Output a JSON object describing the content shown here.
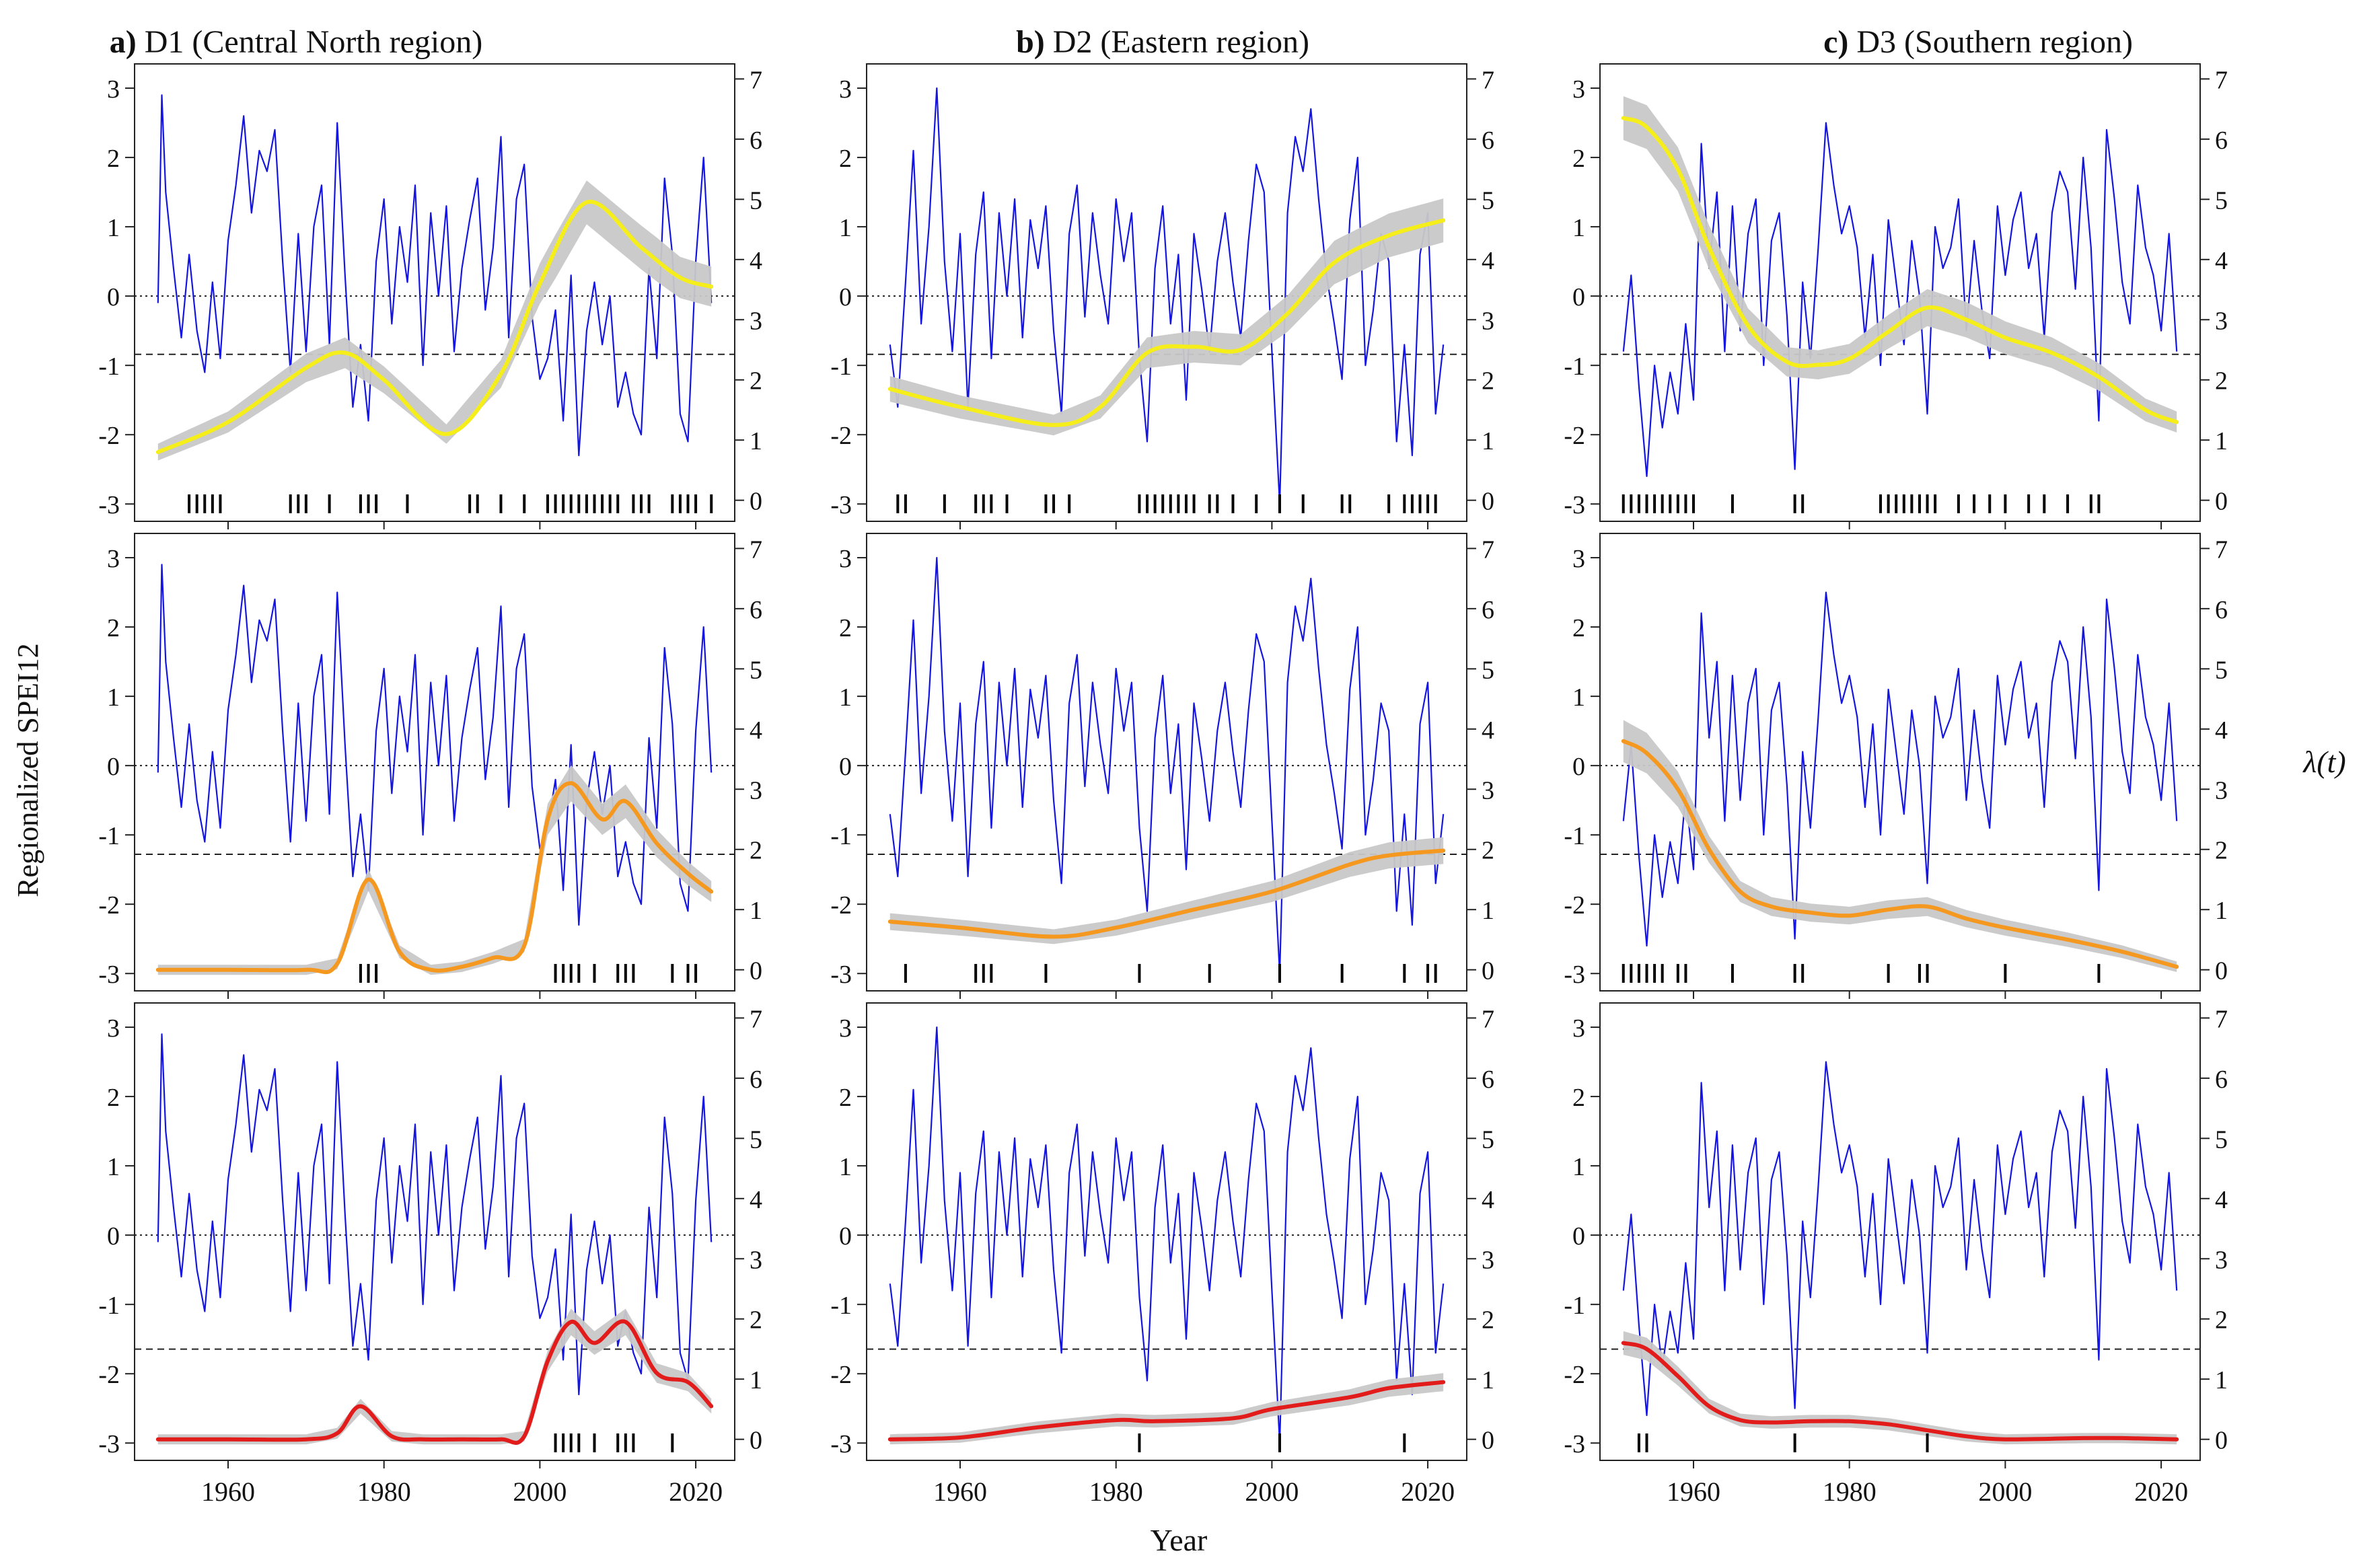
{
  "figure": {
    "panel_titles": [
      {
        "letter": "a)",
        "text": "D1 (Central North region)"
      },
      {
        "letter": "b)",
        "text": "D2 (Eastern region)"
      },
      {
        "letter": "c)",
        "text": "D3 (Southern region)"
      }
    ],
    "ylabel_left": "Regionalized SPEI12",
    "ylabel_right": "λ(t)",
    "xlabel": "Year"
  },
  "colors": {
    "spei_line": "#1515e0",
    "band": "#c8c8c8",
    "row_curves": [
      "#f5ee1a",
      "#f5981f",
      "#e21b1b"
    ]
  },
  "chart_data": {
    "type": "line",
    "layout": "3x3 grid (rows share thresholds, columns are regions)",
    "x_range": [
      1948,
      2025
    ],
    "x_ticks": [
      1960,
      1980,
      2000,
      2020
    ],
    "y_left_range": [
      -3.25,
      3.35
    ],
    "y_left_ticks": [
      -3,
      -2,
      -1,
      0,
      1,
      2,
      3
    ],
    "y_right_range": [
      -0.35,
      7.25
    ],
    "y_right_ticks": [
      0,
      1,
      2,
      3,
      4,
      5,
      6,
      7
    ],
    "zero_line": "dotted at SPEI 0",
    "rows": [
      {
        "threshold": -0.84,
        "curve_color": "#f5ee1a"
      },
      {
        "threshold": -1.28,
        "curve_color": "#f5981f"
      },
      {
        "threshold": -1.645,
        "curve_color": "#e21b1b"
      }
    ],
    "regions": [
      {
        "name": "D1 (Central North region)",
        "spei_series": {
          "x": [
            1951,
            1951.5,
            1952,
            1953,
            1954,
            1955,
            1956,
            1957,
            1958,
            1959,
            1960,
            1961,
            1962,
            1963,
            1964,
            1965,
            1966,
            1967,
            1968,
            1969,
            1970,
            1971,
            1972,
            1973,
            1974,
            1975,
            1976,
            1977,
            1978,
            1979,
            1980,
            1981,
            1982,
            1983,
            1984,
            1985,
            1986,
            1987,
            1988,
            1989,
            1990,
            1991,
            1992,
            1993,
            1994,
            1995,
            1996,
            1997,
            1998,
            1999,
            2000,
            2001,
            2002,
            2003,
            2004,
            2005,
            2006,
            2007,
            2008,
            2009,
            2010,
            2011,
            2012,
            2013,
            2014,
            2015,
            2016,
            2017,
            2018,
            2019,
            2020,
            2021,
            2022
          ],
          "y": [
            -0.1,
            2.9,
            1.5,
            0.4,
            -0.6,
            0.6,
            -0.5,
            -1.1,
            0.2,
            -0.9,
            0.8,
            1.6,
            2.6,
            1.2,
            2.1,
            1.8,
            2.4,
            0.5,
            -1.1,
            0.9,
            -0.8,
            1.0,
            1.6,
            -0.7,
            2.5,
            0.3,
            -1.6,
            -0.7,
            -1.8,
            0.5,
            1.4,
            -0.4,
            1.0,
            0.2,
            1.6,
            -1.0,
            1.2,
            0.0,
            1.3,
            -0.8,
            0.4,
            1.1,
            1.7,
            -0.2,
            0.7,
            2.3,
            -0.6,
            1.4,
            1.9,
            -0.3,
            -1.2,
            -0.9,
            -0.2,
            -1.8,
            0.3,
            -2.3,
            -0.5,
            0.2,
            -0.7,
            0.0,
            -1.6,
            -1.1,
            -1.7,
            -2.0,
            0.4,
            -0.9,
            1.7,
            0.6,
            -1.7,
            -2.1,
            0.5,
            2.0,
            -0.1
          ]
        },
        "lambda_curves": [
          {
            "x": [
              1951,
              1960,
              1970,
              1975,
              1980,
              1988,
              1995,
              2000,
              2006,
              2013,
              2018,
              2022
            ],
            "y": [
              0.8,
              1.3,
              2.2,
              2.45,
              2.0,
              1.1,
              2.1,
              3.6,
              4.95,
              4.2,
              3.7,
              3.55
            ]
          },
          {
            "x": [
              1951,
              1960,
              1970,
              1974,
              1978,
              1982,
              1986,
              1990,
              1994,
              1998,
              2001,
              2004,
              2008,
              2011,
              2015,
              2019,
              2022
            ],
            "y": [
              0.0,
              0.0,
              0.0,
              0.1,
              1.5,
              0.3,
              0.0,
              0.05,
              0.2,
              0.4,
              2.5,
              3.1,
              2.5,
              2.8,
              2.1,
              1.6,
              1.3
            ]
          },
          {
            "x": [
              1951,
              1960,
              1970,
              1974,
              1977,
              1981,
              1985,
              1990,
              1995,
              1998,
              2001,
              2004,
              2007,
              2011,
              2015,
              2019,
              2022
            ],
            "y": [
              0.0,
              0.0,
              0.0,
              0.1,
              0.55,
              0.05,
              0.0,
              0.0,
              0.0,
              0.05,
              1.3,
              1.95,
              1.6,
              1.95,
              1.1,
              0.95,
              0.55
            ]
          }
        ],
        "event_years": [
          [
            1955,
            1956,
            1957,
            1958,
            1959,
            1968,
            1969,
            1970,
            1973,
            1977,
            1978,
            1979,
            1983,
            1991,
            1992,
            1995,
            1998,
            2001,
            2002,
            2003,
            2004,
            2005,
            2006,
            2007,
            2008,
            2009,
            2010,
            2012,
            2013,
            2014,
            2017,
            2018,
            2019,
            2020,
            2022
          ],
          [
            1977,
            1978,
            1979,
            2002,
            2003,
            2004,
            2005,
            2007,
            2010,
            2011,
            2012,
            2017,
            2019,
            2020
          ],
          [
            2002,
            2003,
            2004,
            2005,
            2007,
            2010,
            2011,
            2012,
            2017
          ]
        ]
      },
      {
        "name": "D2 (Eastern region)",
        "spei_series": {
          "x": [
            1951,
            1952,
            1953,
            1954,
            1955,
            1956,
            1957,
            1958,
            1959,
            1960,
            1961,
            1962,
            1963,
            1964,
            1965,
            1966,
            1967,
            1968,
            1969,
            1970,
            1971,
            1972,
            1973,
            1974,
            1975,
            1976,
            1977,
            1978,
            1979,
            1980,
            1981,
            1982,
            1983,
            1984,
            1985,
            1986,
            1987,
            1988,
            1989,
            1990,
            1991,
            1992,
            1993,
            1994,
            1995,
            1996,
            1997,
            1998,
            1999,
            2000,
            2001,
            2002,
            2003,
            2004,
            2005,
            2006,
            2007,
            2008,
            2009,
            2010,
            2011,
            2012,
            2013,
            2014,
            2015,
            2016,
            2017,
            2018,
            2019,
            2020,
            2021,
            2022
          ],
          "y": [
            -0.7,
            -1.6,
            0.2,
            2.1,
            -0.4,
            1.0,
            3.0,
            0.5,
            -0.8,
            0.9,
            -1.6,
            0.6,
            1.5,
            -0.9,
            1.2,
            0.0,
            1.4,
            -0.6,
            1.1,
            0.4,
            1.3,
            -0.5,
            -1.7,
            0.9,
            1.6,
            -0.3,
            1.2,
            0.3,
            -0.4,
            1.4,
            0.5,
            1.2,
            -0.9,
            -2.1,
            0.4,
            1.3,
            -0.4,
            0.6,
            -1.5,
            0.9,
            0.1,
            -0.8,
            0.5,
            1.2,
            0.2,
            -0.6,
            0.8,
            1.9,
            1.5,
            -0.8,
            -3.0,
            1.2,
            2.3,
            1.8,
            2.7,
            1.4,
            0.3,
            -0.4,
            -1.2,
            1.1,
            2.0,
            -1.0,
            -0.2,
            0.9,
            0.5,
            -2.1,
            -0.7,
            -2.3,
            0.6,
            1.2,
            -1.7,
            -0.7
          ]
        },
        "lambda_curves": [
          {
            "x": [
              1951,
              1960,
              1972,
              1978,
              1984,
              1990,
              1996,
              2002,
              2008,
              2015,
              2022
            ],
            "y": [
              1.85,
              1.55,
              1.25,
              1.55,
              2.45,
              2.55,
              2.5,
              3.1,
              3.95,
              4.4,
              4.65
            ]
          },
          {
            "x": [
              1951,
              1960,
              1972,
              1980,
              1990,
              2000,
              2010,
              2015,
              2022
            ],
            "y": [
              0.8,
              0.7,
              0.55,
              0.7,
              1.0,
              1.3,
              1.75,
              1.9,
              1.98
            ]
          },
          {
            "x": [
              1951,
              1960,
              1970,
              1980,
              1985,
              1995,
              2000,
              2010,
              2015,
              2022
            ],
            "y": [
              0.0,
              0.03,
              0.2,
              0.32,
              0.3,
              0.35,
              0.5,
              0.7,
              0.85,
              0.95
            ]
          }
        ],
        "event_years": [
          [
            1952,
            1953,
            1958,
            1962,
            1963,
            1964,
            1966,
            1971,
            1972,
            1974,
            1983,
            1984,
            1985,
            1986,
            1987,
            1988,
            1989,
            1990,
            1992,
            1993,
            1995,
            1998,
            2001,
            2004,
            2009,
            2010,
            2015,
            2017,
            2018,
            2019,
            2020,
            2021
          ],
          [
            1953,
            1962,
            1963,
            1964,
            1971,
            1983,
            1992,
            2001,
            2009,
            2017,
            2020,
            2021
          ],
          [
            1983,
            2001,
            2017
          ]
        ]
      },
      {
        "name": "D3 (Southern region)",
        "spei_series": {
          "x": [
            1951,
            1952,
            1953,
            1954,
            1955,
            1956,
            1957,
            1958,
            1959,
            1960,
            1961,
            1962,
            1963,
            1964,
            1965,
            1966,
            1967,
            1968,
            1969,
            1970,
            1971,
            1972,
            1973,
            1974,
            1975,
            1976,
            1977,
            1978,
            1979,
            1980,
            1981,
            1982,
            1983,
            1984,
            1985,
            1986,
            1987,
            1988,
            1989,
            1990,
            1991,
            1992,
            1993,
            1994,
            1995,
            1996,
            1997,
            1998,
            1999,
            2000,
            2001,
            2002,
            2003,
            2004,
            2005,
            2006,
            2007,
            2008,
            2009,
            2010,
            2011,
            2012,
            2013,
            2014,
            2015,
            2016,
            2017,
            2018,
            2019,
            2020,
            2021,
            2022
          ],
          "y": [
            -0.8,
            0.3,
            -1.3,
            -2.6,
            -1.0,
            -1.9,
            -1.1,
            -1.7,
            -0.4,
            -1.5,
            2.2,
            0.4,
            1.5,
            -0.8,
            1.3,
            -0.5,
            0.9,
            1.4,
            -1.0,
            0.8,
            1.2,
            -0.3,
            -2.5,
            0.2,
            -0.9,
            0.7,
            2.5,
            1.6,
            0.9,
            1.3,
            0.7,
            -0.6,
            0.6,
            -1.0,
            1.1,
            0.2,
            -0.7,
            0.8,
            0.0,
            -1.7,
            1.0,
            0.4,
            0.7,
            1.4,
            -0.5,
            0.8,
            -0.2,
            -0.9,
            1.3,
            0.3,
            1.1,
            1.5,
            0.4,
            0.9,
            -0.6,
            1.2,
            1.8,
            1.5,
            0.1,
            2.0,
            0.7,
            -1.8,
            2.4,
            1.4,
            0.2,
            -0.4,
            1.6,
            0.7,
            0.3,
            -0.5,
            0.9,
            -0.8
          ]
        },
        "lambda_curves": [
          {
            "x": [
              1951,
              1954,
              1958,
              1962,
              1967,
              1972,
              1976,
              1980,
              1985,
              1990,
              1995,
              2000,
              2006,
              2012,
              2018,
              2022
            ],
            "y": [
              6.35,
              6.2,
              5.5,
              4.2,
              2.9,
              2.3,
              2.25,
              2.35,
              2.8,
              3.2,
              3.0,
              2.7,
              2.45,
              2.05,
              1.5,
              1.3
            ]
          },
          {
            "x": [
              1951,
              1954,
              1958,
              1962,
              1966,
              1970,
              1975,
              1980,
              1985,
              1990,
              1995,
              2000,
              2008,
              2015,
              2022
            ],
            "y": [
              3.8,
              3.6,
              3.0,
              2.0,
              1.3,
              1.05,
              0.95,
              0.9,
              1.0,
              1.05,
              0.85,
              0.7,
              0.5,
              0.3,
              0.05
            ]
          },
          {
            "x": [
              1951,
              1954,
              1958,
              1962,
              1966,
              1970,
              1975,
              1980,
              1985,
              1990,
              1995,
              2000,
              2010,
              2015,
              2022
            ],
            "y": [
              1.6,
              1.5,
              1.05,
              0.55,
              0.32,
              0.28,
              0.3,
              0.3,
              0.25,
              0.15,
              0.05,
              0.0,
              0.02,
              0.02,
              0.0
            ]
          }
        ],
        "event_years": [
          [
            1951,
            1952,
            1953,
            1954,
            1955,
            1956,
            1957,
            1958,
            1959,
            1960,
            1965,
            1973,
            1974,
            1984,
            1985,
            1986,
            1987,
            1988,
            1989,
            1990,
            1991,
            1994,
            1996,
            1998,
            2000,
            2003,
            2005,
            2008,
            2011,
            2012
          ],
          [
            1951,
            1952,
            1953,
            1954,
            1955,
            1956,
            1958,
            1959,
            1965,
            1973,
            1974,
            1985,
            1989,
            1990,
            2000,
            2012
          ],
          [
            1953,
            1954,
            1973,
            1990
          ]
        ]
      }
    ]
  }
}
